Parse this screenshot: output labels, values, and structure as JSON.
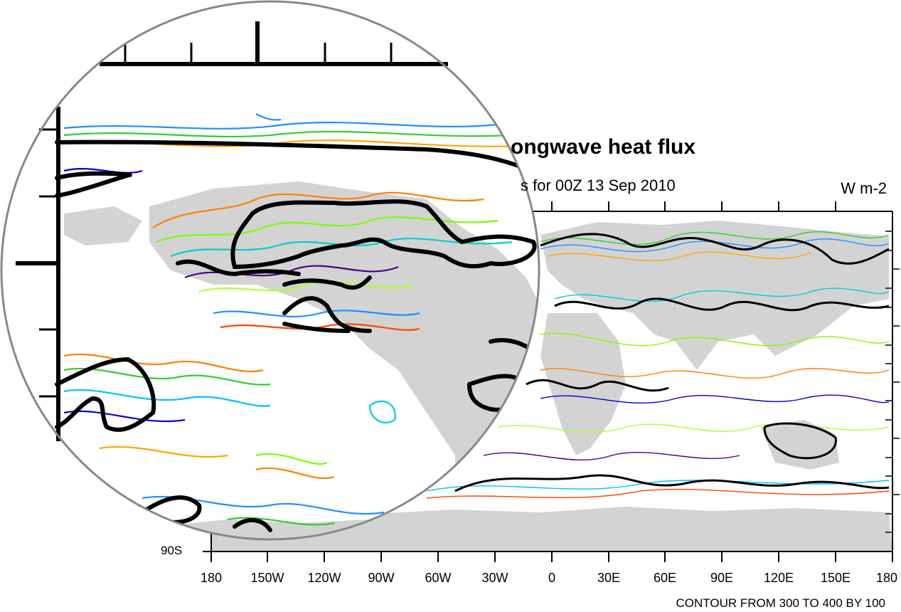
{
  "title_visible": "ongwave heat flux",
  "subtitle_visible": "s for 00Z 13 Sep 2010",
  "units": "W m-2",
  "lat_label": "90S",
  "x_ticks": [
    "180",
    "150W",
    "120W",
    "90W",
    "60W",
    "30W",
    "0",
    "30E",
    "60E",
    "90E",
    "120E",
    "150E",
    "180"
  ],
  "footer": "CONTOUR FROM 300 TO 400 BY 100",
  "colors": {
    "land": "#d3d3d3",
    "heavy_contour": "#000000",
    "contour_palette": [
      "#0000cd",
      "#1e90ff",
      "#00bfff",
      "#00ced1",
      "#32cd32",
      "#7cfc00",
      "#adff2f",
      "#ffff00",
      "#ffa500",
      "#ff7f00",
      "#ff4500",
      "#4b0082"
    ]
  }
}
